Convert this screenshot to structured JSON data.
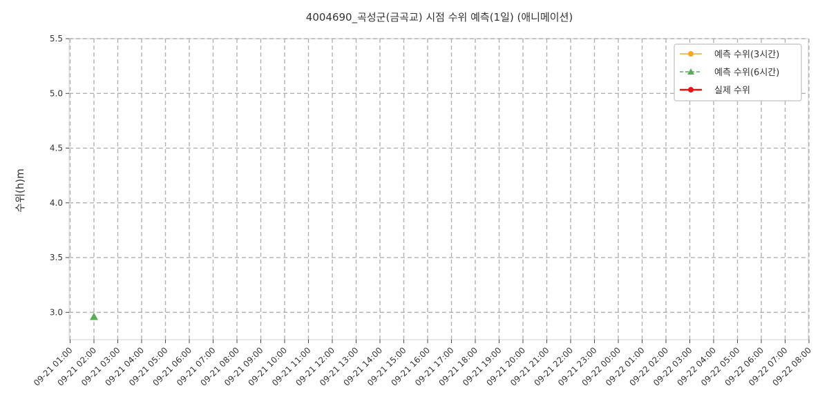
{
  "chart_data": {
    "type": "line",
    "title": "4004690_곡성군(금곡교) 시점 수위 예측(1일) (애니메이션)",
    "xlabel": "",
    "ylabel": "수위(h)m",
    "x_ticks": [
      "09-21 01:00",
      "09-21 02:00",
      "09-21 03:00",
      "09-21 04:00",
      "09-21 05:00",
      "09-21 06:00",
      "09-21 07:00",
      "09-21 08:00",
      "09-21 09:00",
      "09-21 10:00",
      "09-21 11:00",
      "09-21 12:00",
      "09-21 13:00",
      "09-21 14:00",
      "09-21 15:00",
      "09-21 16:00",
      "09-21 17:00",
      "09-21 18:00",
      "09-21 19:00",
      "09-21 20:00",
      "09-21 21:00",
      "09-21 22:00",
      "09-21 23:00",
      "09-22 00:00",
      "09-22 01:00",
      "09-22 02:00",
      "09-22 03:00",
      "09-22 04:00",
      "09-22 05:00",
      "09-22 06:00",
      "09-22 07:00",
      "09-22 08:00"
    ],
    "y_ticks": [
      "3.0",
      "3.5",
      "4.0",
      "4.5",
      "5.0",
      "5.5"
    ],
    "ylim": [
      2.75,
      5.5
    ],
    "grid": true,
    "legend_position": "top-right",
    "series": [
      {
        "name": "예측 수위(3시간)",
        "color": "#f5a623",
        "marker": "circle",
        "line_style": "solid",
        "x": [],
        "y": []
      },
      {
        "name": "예측 수위(6시간)",
        "color": "#5aac5a",
        "marker": "triangle",
        "line_style": "dashed",
        "x": [
          "09-21 02:00"
        ],
        "y": [
          2.96
        ]
      },
      {
        "name": "실제 수위",
        "color": "#ee1111",
        "marker": "circle",
        "line_style": "solid",
        "x": [],
        "y": []
      }
    ]
  }
}
